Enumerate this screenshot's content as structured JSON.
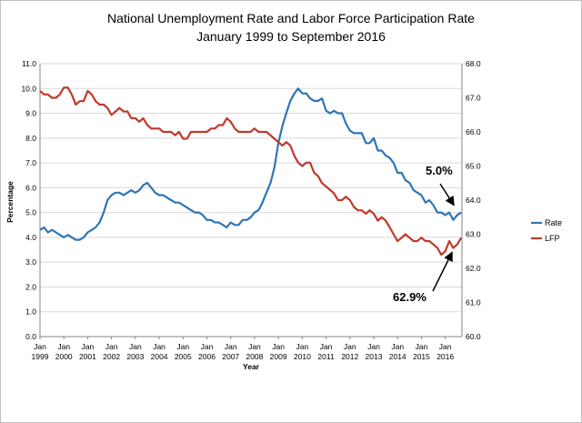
{
  "chart_data": {
    "type": "line",
    "title": "National  Unemployment Rate and Labor Force Participation  Rate",
    "subtitle": "January  1999 to September 2016",
    "xlabel": "Year",
    "ylabel": "Percentage",
    "x_ticks": [
      {
        "top": "Jan",
        "bottom": "1999",
        "x": 1999.0
      },
      {
        "top": "Jan",
        "bottom": "2000",
        "x": 2000.0
      },
      {
        "top": "Jan",
        "bottom": "2001",
        "x": 2001.0
      },
      {
        "top": "Jan",
        "bottom": "2002",
        "x": 2002.0
      },
      {
        "top": "Jan",
        "bottom": "2003",
        "x": 2003.0
      },
      {
        "top": "Jan",
        "bottom": "2004",
        "x": 2004.0
      },
      {
        "top": "Jan",
        "bottom": "2005",
        "x": 2005.0
      },
      {
        "top": "Jan",
        "bottom": "2006",
        "x": 2006.0
      },
      {
        "top": "Jan",
        "bottom": "2007",
        "x": 2007.0
      },
      {
        "top": "Jan",
        "bottom": "2008",
        "x": 2008.0
      },
      {
        "top": "Jan",
        "bottom": "2009",
        "x": 2009.0
      },
      {
        "top": "Jan",
        "bottom": "2010",
        "x": 2010.0
      },
      {
        "top": "Jan",
        "bottom": "2011",
        "x": 2011.0
      },
      {
        "top": "Jan",
        "bottom": "2012",
        "x": 2012.0
      },
      {
        "top": "Jan",
        "bottom": "2013",
        "x": 2013.0
      },
      {
        "top": "Jan",
        "bottom": "2014",
        "x": 2014.0
      },
      {
        "top": "Jan",
        "bottom": "2015",
        "x": 2015.0
      },
      {
        "top": "Jan",
        "bottom": "2016",
        "x": 2016.0
      }
    ],
    "xlim": [
      1999.0,
      2016.7
    ],
    "y_left": {
      "lim": [
        0,
        11
      ],
      "ticks": [
        "0.0",
        "1.0",
        "2.0",
        "3.0",
        "4.0",
        "5.0",
        "6.0",
        "7.0",
        "8.0",
        "9.0",
        "10.0",
        "11.0"
      ]
    },
    "y_right": {
      "lim": [
        60,
        68
      ],
      "ticks": [
        "60.0",
        "61.0",
        "62.0",
        "63.0",
        "64.0",
        "65.0",
        "66.0",
        "67.0",
        "68.0"
      ]
    },
    "grid": true,
    "legend_position": "right",
    "series": [
      {
        "name": "Rate",
        "axis": "left",
        "color": "#2e75b6",
        "points": [
          [
            1999.0,
            4.3
          ],
          [
            1999.17,
            4.4
          ],
          [
            1999.33,
            4.2
          ],
          [
            1999.5,
            4.3
          ],
          [
            1999.67,
            4.2
          ],
          [
            1999.83,
            4.1
          ],
          [
            2000.0,
            4.0
          ],
          [
            2000.17,
            4.1
          ],
          [
            2000.33,
            4.0
          ],
          [
            2000.5,
            3.9
          ],
          [
            2000.67,
            3.9
          ],
          [
            2000.83,
            4.0
          ],
          [
            2001.0,
            4.2
          ],
          [
            2001.17,
            4.3
          ],
          [
            2001.33,
            4.4
          ],
          [
            2001.5,
            4.6
          ],
          [
            2001.67,
            5.0
          ],
          [
            2001.83,
            5.5
          ],
          [
            2002.0,
            5.7
          ],
          [
            2002.17,
            5.8
          ],
          [
            2002.33,
            5.8
          ],
          [
            2002.5,
            5.7
          ],
          [
            2002.67,
            5.8
          ],
          [
            2002.83,
            5.9
          ],
          [
            2003.0,
            5.8
          ],
          [
            2003.17,
            5.9
          ],
          [
            2003.33,
            6.1
          ],
          [
            2003.5,
            6.2
          ],
          [
            2003.67,
            6.0
          ],
          [
            2003.83,
            5.8
          ],
          [
            2004.0,
            5.7
          ],
          [
            2004.17,
            5.7
          ],
          [
            2004.33,
            5.6
          ],
          [
            2004.5,
            5.5
          ],
          [
            2004.67,
            5.4
          ],
          [
            2004.83,
            5.4
          ],
          [
            2005.0,
            5.3
          ],
          [
            2005.17,
            5.2
          ],
          [
            2005.33,
            5.1
          ],
          [
            2005.5,
            5.0
          ],
          [
            2005.67,
            5.0
          ],
          [
            2005.83,
            4.9
          ],
          [
            2006.0,
            4.7
          ],
          [
            2006.17,
            4.7
          ],
          [
            2006.33,
            4.6
          ],
          [
            2006.5,
            4.6
          ],
          [
            2006.67,
            4.5
          ],
          [
            2006.83,
            4.4
          ],
          [
            2007.0,
            4.6
          ],
          [
            2007.17,
            4.5
          ],
          [
            2007.33,
            4.5
          ],
          [
            2007.5,
            4.7
          ],
          [
            2007.67,
            4.7
          ],
          [
            2007.83,
            4.8
          ],
          [
            2008.0,
            5.0
          ],
          [
            2008.17,
            5.1
          ],
          [
            2008.33,
            5.4
          ],
          [
            2008.5,
            5.8
          ],
          [
            2008.67,
            6.2
          ],
          [
            2008.83,
            6.8
          ],
          [
            2009.0,
            7.8
          ],
          [
            2009.17,
            8.5
          ],
          [
            2009.33,
            9.0
          ],
          [
            2009.5,
            9.5
          ],
          [
            2009.67,
            9.8
          ],
          [
            2009.83,
            10.0
          ],
          [
            2010.0,
            9.8
          ],
          [
            2010.17,
            9.8
          ],
          [
            2010.33,
            9.6
          ],
          [
            2010.5,
            9.5
          ],
          [
            2010.67,
            9.5
          ],
          [
            2010.83,
            9.6
          ],
          [
            2011.0,
            9.1
          ],
          [
            2011.17,
            9.0
          ],
          [
            2011.33,
            9.1
          ],
          [
            2011.5,
            9.0
          ],
          [
            2011.67,
            9.0
          ],
          [
            2011.83,
            8.6
          ],
          [
            2012.0,
            8.3
          ],
          [
            2012.17,
            8.2
          ],
          [
            2012.33,
            8.2
          ],
          [
            2012.5,
            8.2
          ],
          [
            2012.67,
            7.8
          ],
          [
            2012.83,
            7.8
          ],
          [
            2013.0,
            8.0
          ],
          [
            2013.17,
            7.5
          ],
          [
            2013.33,
            7.5
          ],
          [
            2013.5,
            7.3
          ],
          [
            2013.67,
            7.2
          ],
          [
            2013.83,
            7.0
          ],
          [
            2014.0,
            6.6
          ],
          [
            2014.17,
            6.6
          ],
          [
            2014.33,
            6.3
          ],
          [
            2014.5,
            6.2
          ],
          [
            2014.67,
            5.9
          ],
          [
            2014.83,
            5.8
          ],
          [
            2015.0,
            5.7
          ],
          [
            2015.17,
            5.4
          ],
          [
            2015.33,
            5.5
          ],
          [
            2015.5,
            5.3
          ],
          [
            2015.67,
            5.0
          ],
          [
            2015.83,
            5.0
          ],
          [
            2016.0,
            4.9
          ],
          [
            2016.17,
            5.0
          ],
          [
            2016.33,
            4.7
          ],
          [
            2016.5,
            4.9
          ],
          [
            2016.67,
            5.0
          ]
        ]
      },
      {
        "name": "LFP",
        "axis": "right",
        "color": "#c0392b",
        "points": [
          [
            1999.0,
            67.2
          ],
          [
            1999.17,
            67.1
          ],
          [
            1999.33,
            67.1
          ],
          [
            1999.5,
            67.0
          ],
          [
            1999.67,
            67.0
          ],
          [
            1999.83,
            67.1
          ],
          [
            2000.0,
            67.3
          ],
          [
            2000.17,
            67.3
          ],
          [
            2000.33,
            67.1
          ],
          [
            2000.5,
            66.8
          ],
          [
            2000.67,
            66.9
          ],
          [
            2000.83,
            66.9
          ],
          [
            2001.0,
            67.2
          ],
          [
            2001.17,
            67.1
          ],
          [
            2001.33,
            66.9
          ],
          [
            2001.5,
            66.8
          ],
          [
            2001.67,
            66.8
          ],
          [
            2001.83,
            66.7
          ],
          [
            2002.0,
            66.5
          ],
          [
            2002.17,
            66.6
          ],
          [
            2002.33,
            66.7
          ],
          [
            2002.5,
            66.6
          ],
          [
            2002.67,
            66.6
          ],
          [
            2002.83,
            66.4
          ],
          [
            2003.0,
            66.4
          ],
          [
            2003.17,
            66.3
          ],
          [
            2003.33,
            66.4
          ],
          [
            2003.5,
            66.2
          ],
          [
            2003.67,
            66.1
          ],
          [
            2003.83,
            66.1
          ],
          [
            2004.0,
            66.1
          ],
          [
            2004.17,
            66.0
          ],
          [
            2004.33,
            66.0
          ],
          [
            2004.5,
            66.0
          ],
          [
            2004.67,
            65.9
          ],
          [
            2004.83,
            66.0
          ],
          [
            2005.0,
            65.8
          ],
          [
            2005.17,
            65.8
          ],
          [
            2005.33,
            66.0
          ],
          [
            2005.5,
            66.0
          ],
          [
            2005.67,
            66.0
          ],
          [
            2005.83,
            66.0
          ],
          [
            2006.0,
            66.0
          ],
          [
            2006.17,
            66.1
          ],
          [
            2006.33,
            66.1
          ],
          [
            2006.5,
            66.2
          ],
          [
            2006.67,
            66.2
          ],
          [
            2006.83,
            66.4
          ],
          [
            2007.0,
            66.3
          ],
          [
            2007.17,
            66.1
          ],
          [
            2007.33,
            66.0
          ],
          [
            2007.5,
            66.0
          ],
          [
            2007.67,
            66.0
          ],
          [
            2007.83,
            66.0
          ],
          [
            2008.0,
            66.1
          ],
          [
            2008.17,
            66.0
          ],
          [
            2008.33,
            66.0
          ],
          [
            2008.5,
            66.0
          ],
          [
            2008.67,
            65.9
          ],
          [
            2008.83,
            65.8
          ],
          [
            2009.0,
            65.7
          ],
          [
            2009.17,
            65.6
          ],
          [
            2009.33,
            65.7
          ],
          [
            2009.5,
            65.6
          ],
          [
            2009.67,
            65.3
          ],
          [
            2009.83,
            65.1
          ],
          [
            2010.0,
            65.0
          ],
          [
            2010.17,
            65.1
          ],
          [
            2010.33,
            65.1
          ],
          [
            2010.5,
            64.8
          ],
          [
            2010.67,
            64.7
          ],
          [
            2010.83,
            64.5
          ],
          [
            2011.0,
            64.4
          ],
          [
            2011.17,
            64.3
          ],
          [
            2011.33,
            64.2
          ],
          [
            2011.5,
            64.0
          ],
          [
            2011.67,
            64.0
          ],
          [
            2011.83,
            64.1
          ],
          [
            2012.0,
            64.0
          ],
          [
            2012.17,
            63.8
          ],
          [
            2012.33,
            63.7
          ],
          [
            2012.5,
            63.7
          ],
          [
            2012.67,
            63.6
          ],
          [
            2012.83,
            63.7
          ],
          [
            2013.0,
            63.6
          ],
          [
            2013.17,
            63.4
          ],
          [
            2013.33,
            63.5
          ],
          [
            2013.5,
            63.4
          ],
          [
            2013.67,
            63.2
          ],
          [
            2013.83,
            63.0
          ],
          [
            2014.0,
            62.8
          ],
          [
            2014.17,
            62.9
          ],
          [
            2014.33,
            63.0
          ],
          [
            2014.5,
            62.9
          ],
          [
            2014.67,
            62.8
          ],
          [
            2014.83,
            62.8
          ],
          [
            2015.0,
            62.9
          ],
          [
            2015.17,
            62.8
          ],
          [
            2015.33,
            62.8
          ],
          [
            2015.5,
            62.7
          ],
          [
            2015.67,
            62.6
          ],
          [
            2015.83,
            62.4
          ],
          [
            2016.0,
            62.5
          ],
          [
            2016.17,
            62.8
          ],
          [
            2016.33,
            62.6
          ],
          [
            2016.5,
            62.7
          ],
          [
            2016.67,
            62.9
          ]
        ]
      }
    ],
    "annotations": [
      {
        "text": "5.0%",
        "series": "Rate"
      },
      {
        "text": "62.9%",
        "series": "LFP"
      }
    ]
  }
}
